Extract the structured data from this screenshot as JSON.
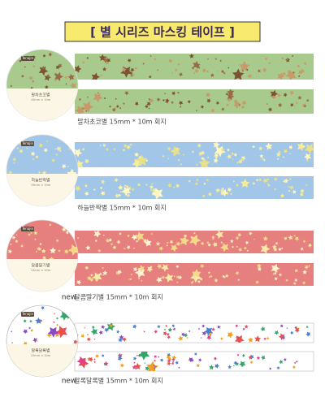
{
  "header": {
    "title": "[ 별 시리즈 마스킹 테이프 ]"
  },
  "products": [
    {
      "brand": "Tenajin",
      "label": "말차초코별",
      "size": "15mm × 10m",
      "caption": "말차초코별 15mm * 10m 회지"
    },
    {
      "brand": "Tenajin",
      "label": "하늘반짝별",
      "size": "15mm × 10m",
      "caption": "하늘반짝별 15mm * 10m 회지"
    },
    {
      "brand": "Tenajin",
      "label": "달콤딸기별",
      "size": "15mm × 10m",
      "new": "new",
      "caption": "달콤딸기별 15mm * 10m 회지"
    },
    {
      "brand": "Tenajin",
      "label": "알록달록별",
      "size": "15mm × 10m",
      "new": "new",
      "caption": "알록달록별 15mm * 10m 회지"
    }
  ]
}
